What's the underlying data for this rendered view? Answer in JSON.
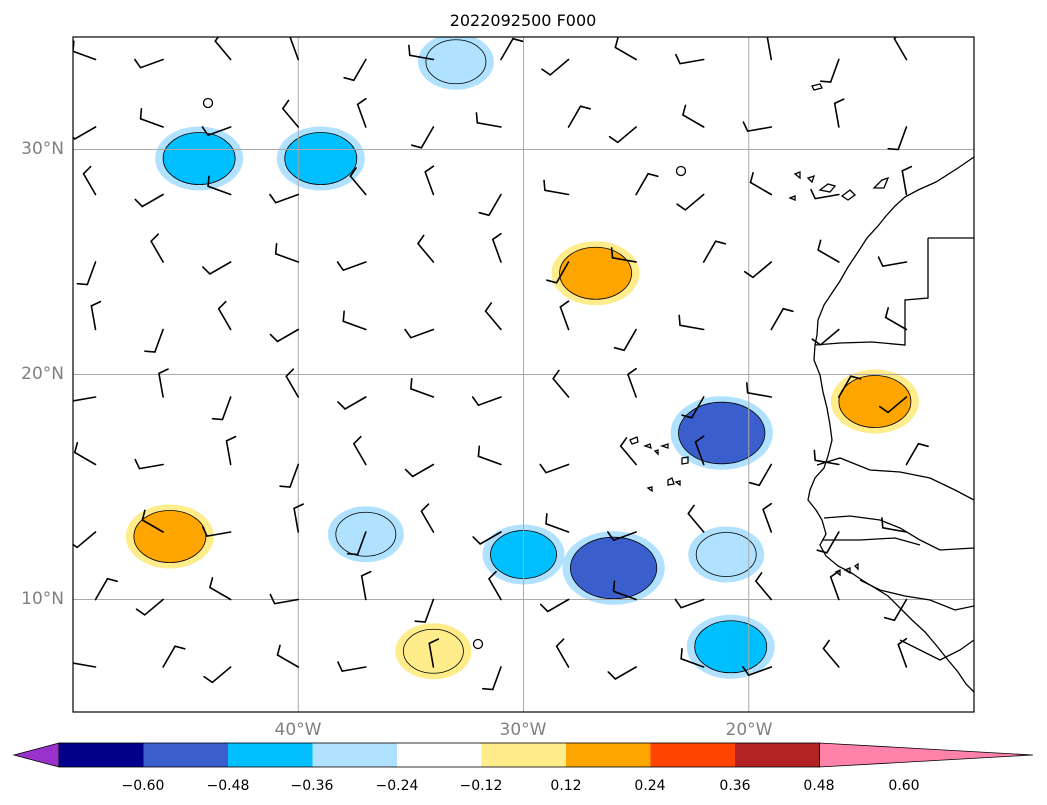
{
  "title": "2022092500 F000",
  "axes": {
    "lat_labels": [
      {
        "text": "30°N",
        "lat": 30
      },
      {
        "text": "20°N",
        "lat": 20
      },
      {
        "text": "10°N",
        "lat": 10
      }
    ],
    "lon_labels": [
      {
        "text": "40°W",
        "lon": -40
      },
      {
        "text": "30°W",
        "lon": -30
      },
      {
        "text": "20°W",
        "lon": -20
      }
    ],
    "lon_range": [
      -50,
      -10
    ],
    "lat_range": [
      5,
      35
    ],
    "gridlines": true
  },
  "colorbar": {
    "colors": [
      "#9932cc",
      "#00008b",
      "#3a5fcd",
      "#00bfff",
      "#b0e2ff",
      "#ffffff",
      "#ffec8b",
      "#ffa500",
      "#ff4500",
      "#b22222",
      "#ff82ab"
    ],
    "tick_labels": [
      "−0.60",
      "−0.48",
      "−0.36",
      "−0.24",
      "−0.12",
      "0.12",
      "0.24",
      "0.36",
      "0.48",
      "0.60"
    ],
    "extend": "both"
  },
  "field": {
    "blobs": [
      {
        "lon": -44.4,
        "lat": 29.6,
        "value": -0.3
      },
      {
        "lon": -39.0,
        "lat": 29.6,
        "value": -0.3
      },
      {
        "lon": -33.0,
        "lat": 33.9,
        "value": -0.2
      },
      {
        "lon": -26.8,
        "lat": 24.5,
        "value": 0.3
      },
      {
        "lon": -21.2,
        "lat": 17.4,
        "value": -0.42
      },
      {
        "lon": -45.7,
        "lat": 12.8,
        "value": 0.3
      },
      {
        "lon": -26.0,
        "lat": 11.4,
        "value": -0.42
      },
      {
        "lon": -30.0,
        "lat": 12.0,
        "value": -0.25
      },
      {
        "lon": -37.0,
        "lat": 12.9,
        "value": -0.2
      },
      {
        "lon": -21.0,
        "lat": 12.0,
        "value": -0.2
      },
      {
        "lon": -34.0,
        "lat": 7.7,
        "value": 0.2
      },
      {
        "lon": -20.8,
        "lat": 7.9,
        "value": -0.3
      },
      {
        "lon": -14.4,
        "lat": 18.8,
        "value": 0.3
      }
    ]
  },
  "coastline_label": "West Africa coastline",
  "wind_barbs_label": "wind barbs"
}
